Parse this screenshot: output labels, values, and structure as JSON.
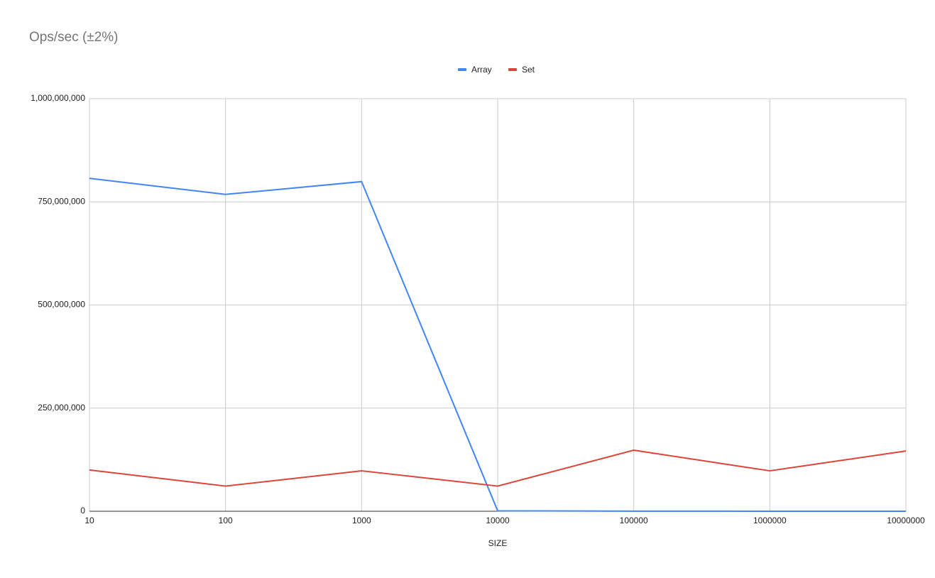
{
  "chart_data": {
    "type": "line",
    "title": "Ops/sec (±2%)",
    "x_label": "SIZE",
    "categories": [
      "10",
      "100",
      "1000",
      "10000",
      "100000",
      "1000000",
      "10000000"
    ],
    "series": [
      {
        "name": "Array",
        "color": "#4285f4",
        "values": [
          807000000,
          768000000,
          799000000,
          1000000,
          300000,
          100000,
          50000
        ]
      },
      {
        "name": "Set",
        "color": "#db4437",
        "values": [
          100000000,
          61000000,
          98000000,
          61000000,
          148000000,
          98000000,
          146000000
        ]
      }
    ],
    "ylim": [
      0,
      1000000000
    ],
    "yticks": [
      0,
      {
        "value": 250000000,
        "label": "250,000,000"
      },
      {
        "value": 500000000,
        "label": "500,000,000"
      },
      {
        "value": 750000000,
        "label": "750,000,000"
      },
      {
        "value": 1000000000,
        "label": "1,000,000,000"
      }
    ],
    "grid": true,
    "legend": "top"
  }
}
